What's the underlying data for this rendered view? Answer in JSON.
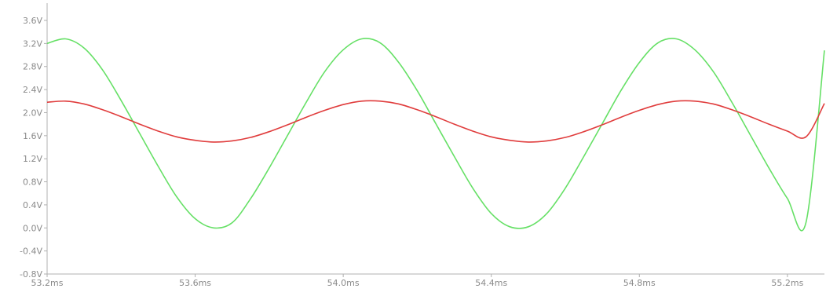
{
  "chart_data": {
    "type": "line",
    "title": "",
    "xlabel": "",
    "ylabel": "",
    "xlim": [
      53.2,
      55.3
    ],
    "ylim": [
      -0.8,
      3.9
    ],
    "grid": false,
    "legend": "none",
    "x_ticks": [
      {
        "value": 53.2,
        "label": "53.2ms"
      },
      {
        "value": 53.6,
        "label": "53.6ms"
      },
      {
        "value": 54.0,
        "label": "54.0ms"
      },
      {
        "value": 54.4,
        "label": "54.4ms"
      },
      {
        "value": 54.8,
        "label": "54.8ms"
      },
      {
        "value": 55.2,
        "label": "55.2ms"
      }
    ],
    "y_ticks": [
      {
        "value": 3.6,
        "label": "3.6V"
      },
      {
        "value": 3.2,
        "label": "3.2V"
      },
      {
        "value": 2.8,
        "label": "2.8V"
      },
      {
        "value": 2.4,
        "label": "2.4V"
      },
      {
        "value": 2.0,
        "label": "2.0V"
      },
      {
        "value": 1.6,
        "label": "1.6V"
      },
      {
        "value": 1.2,
        "label": "1.2V"
      },
      {
        "value": 0.8,
        "label": "0.8V"
      },
      {
        "value": 0.4,
        "label": "0.4V"
      },
      {
        "value": 0.0,
        "label": "0.0V"
      },
      {
        "value": -0.4,
        "label": "-0.4V"
      },
      {
        "value": -0.8,
        "label": "-0.8V"
      }
    ],
    "series": [
      {
        "color": "#66e066",
        "x": [
          53.2,
          53.25,
          53.3,
          53.35,
          53.4,
          53.45,
          53.5,
          53.55,
          53.6,
          53.65,
          53.7,
          53.75,
          53.8,
          53.85,
          53.9,
          53.95,
          54.0,
          54.05,
          54.1,
          54.15,
          54.2,
          54.25,
          54.3,
          54.35,
          54.4,
          54.45,
          54.5,
          54.55,
          54.6,
          54.65,
          54.7,
          54.75,
          54.8,
          54.85,
          54.9,
          54.95,
          55.0,
          55.05,
          55.1,
          55.15,
          55.2,
          55.25,
          55.3
        ],
        "values": [
          3.2,
          3.28,
          3.12,
          2.74,
          2.21,
          1.64,
          1.07,
          0.54,
          0.16,
          0.0,
          0.09,
          0.51,
          1.04,
          1.61,
          2.18,
          2.71,
          3.09,
          3.28,
          3.21,
          2.87,
          2.38,
          1.81,
          1.24,
          0.69,
          0.25,
          0.02,
          0.02,
          0.25,
          0.69,
          1.24,
          1.81,
          2.38,
          2.87,
          3.21,
          3.28,
          3.09,
          2.71,
          2.18,
          1.61,
          1.04,
          0.51,
          0.09,
          3.08
        ]
      },
      {
        "color": "#e03c3c",
        "x": [
          53.2,
          53.25,
          53.3,
          53.35,
          53.4,
          53.45,
          53.5,
          53.55,
          53.6,
          53.65,
          53.7,
          53.75,
          53.8,
          53.85,
          53.9,
          53.95,
          54.0,
          54.05,
          54.1,
          54.15,
          54.2,
          54.25,
          54.3,
          54.35,
          54.4,
          54.45,
          54.5,
          54.55,
          54.6,
          54.65,
          54.7,
          54.75,
          54.8,
          54.85,
          54.9,
          54.95,
          55.0,
          55.05,
          55.1,
          55.15,
          55.2,
          55.25,
          55.3
        ],
        "values": [
          2.18,
          2.2,
          2.15,
          2.05,
          1.93,
          1.8,
          1.68,
          1.58,
          1.52,
          1.49,
          1.51,
          1.57,
          1.67,
          1.79,
          1.92,
          2.04,
          2.14,
          2.2,
          2.2,
          2.15,
          2.05,
          1.93,
          1.8,
          1.68,
          1.58,
          1.52,
          1.49,
          1.51,
          1.57,
          1.67,
          1.79,
          1.92,
          2.04,
          2.14,
          2.2,
          2.2,
          2.15,
          2.05,
          1.93,
          1.8,
          1.68,
          1.58,
          2.16
        ]
      }
    ]
  }
}
